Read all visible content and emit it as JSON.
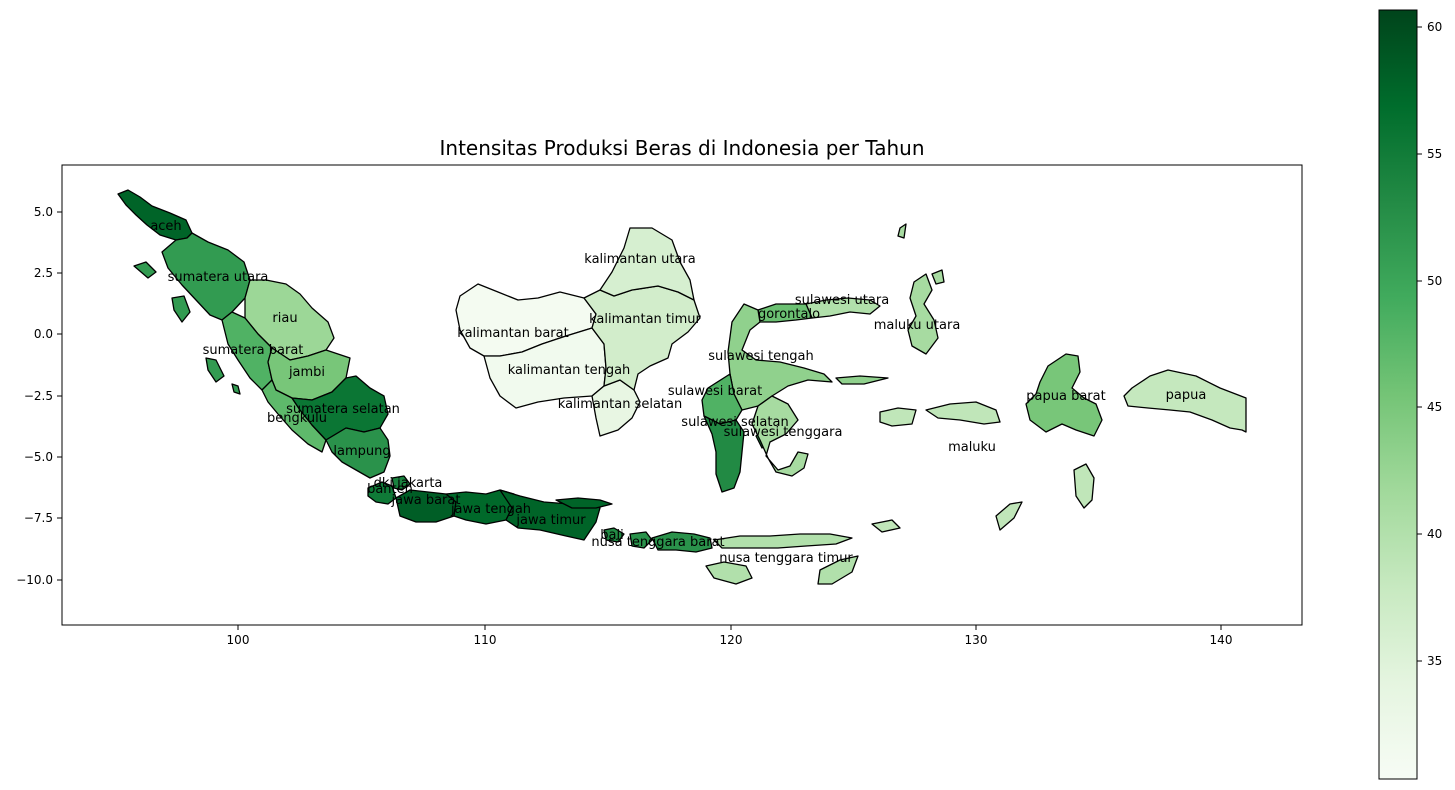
{
  "chart_data": {
    "type": "choropleth",
    "title": "Intensitas Produksi Beras di Indonesia per Tahun",
    "xlim": [
      92.5,
      143.3
    ],
    "ylim": [
      -11.8,
      6.8
    ],
    "x_ticks": [
      "100",
      "110",
      "120",
      "130",
      "140"
    ],
    "y_ticks": [
      "5.0",
      "2.5",
      "0.0",
      "−2.5",
      "−5.0",
      "−7.5",
      "−10.0"
    ],
    "colorbar": {
      "colormap": "Greens",
      "range": [
        30.3,
        60.4
      ],
      "ticks": [
        "35",
        "40",
        "45",
        "50",
        "55",
        "60"
      ],
      "low_color": "#f7fcf5",
      "high_color": "#00441b"
    },
    "regions": [
      {
        "name": "aceh",
        "value": 57.5
      },
      {
        "name": "sumatera utara",
        "value": 51.0
      },
      {
        "name": "riau",
        "value": 42.0
      },
      {
        "name": "sumatera barat",
        "value": 48.0
      },
      {
        "name": "jambi",
        "value": 45.0
      },
      {
        "name": "sumatera selatan",
        "value": 55.5
      },
      {
        "name": "bengkulu",
        "value": 47.0
      },
      {
        "name": "lampung",
        "value": 52.0
      },
      {
        "name": "dki jakarta",
        "value": 54.0
      },
      {
        "name": "banten",
        "value": 55.0
      },
      {
        "name": "jawa barat",
        "value": 58.0
      },
      {
        "name": "jawa tengah",
        "value": 57.0
      },
      {
        "name": "jawa timur",
        "value": 57.5
      },
      {
        "name": "bali",
        "value": 53.0
      },
      {
        "name": "nusa tenggara barat",
        "value": 52.0
      },
      {
        "name": "nusa tenggara timur",
        "value": 40.0
      },
      {
        "name": "kalimantan barat",
        "value": 31.0
      },
      {
        "name": "kalimantan tengah",
        "value": 31.5
      },
      {
        "name": "kalimantan selatan",
        "value": 33.5
      },
      {
        "name": "kalimantan timur",
        "value": 36.5
      },
      {
        "name": "kalimantan utara",
        "value": 36.0
      },
      {
        "name": "sulawesi utara",
        "value": 40.0
      },
      {
        "name": "gorontalo",
        "value": 46.0
      },
      {
        "name": "sulawesi tengah",
        "value": 43.0
      },
      {
        "name": "sulawesi barat",
        "value": 48.0
      },
      {
        "name": "sulawesi selatan",
        "value": 53.0
      },
      {
        "name": "sulawesi tenggara",
        "value": 41.0
      },
      {
        "name": "maluku utara",
        "value": 41.0
      },
      {
        "name": "maluku",
        "value": 38.5
      },
      {
        "name": "papua barat",
        "value": 45.0
      },
      {
        "name": "papua",
        "value": 38.0
      }
    ]
  }
}
